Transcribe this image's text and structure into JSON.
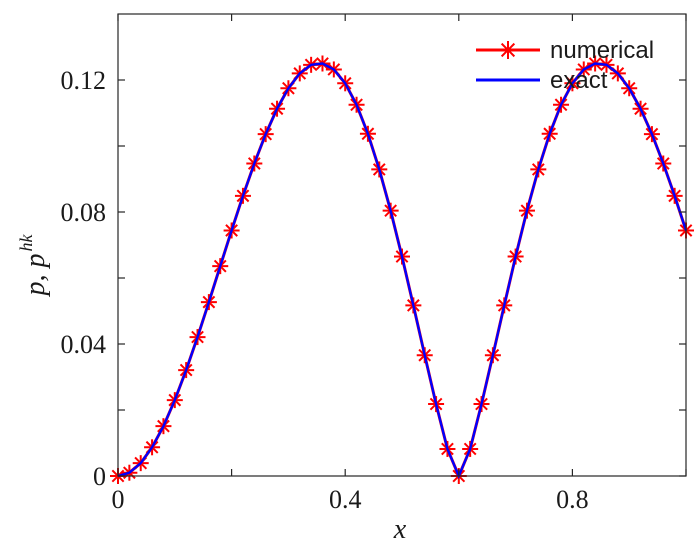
{
  "chart_data": {
    "type": "line",
    "xlabel": "x",
    "ylabel": {
      "main": "p, p",
      "sup": "hk"
    },
    "xlim": [
      0,
      1
    ],
    "ylim": [
      0,
      0.14
    ],
    "xticks": [
      0,
      0.2,
      0.4,
      0.6,
      0.8,
      1.0
    ],
    "xtick_labels": [
      "0",
      "",
      "0.4",
      "",
      "0.8",
      ""
    ],
    "yticks": [
      0,
      0.02,
      0.04,
      0.06,
      0.08,
      0.1,
      0.12
    ],
    "ytick_labels": [
      "0",
      "",
      "0.04",
      "",
      "0.08",
      "",
      "0.12"
    ],
    "grid": false,
    "legend_position": "top-right",
    "x": [
      0,
      0.02,
      0.04,
      0.06,
      0.08,
      0.1,
      0.12,
      0.14,
      0.16,
      0.18,
      0.2,
      0.22,
      0.24,
      0.26,
      0.28,
      0.3,
      0.32,
      0.34,
      0.36,
      0.38,
      0.4,
      0.42,
      0.44,
      0.46,
      0.48,
      0.5,
      0.52,
      0.54,
      0.56,
      0.58,
      0.6,
      0.62,
      0.64,
      0.66,
      0.68,
      0.7,
      0.72,
      0.74,
      0.76,
      0.78,
      0.8,
      0.82,
      0.84,
      0.86,
      0.88,
      0.9,
      0.92,
      0.94,
      0.96,
      0.98,
      1.0
    ],
    "series": [
      {
        "name": "numerical",
        "color": "#ff0000",
        "marker": "asterisk",
        "values": [
          0.0,
          0.001,
          0.0039,
          0.0087,
          0.0151,
          0.023,
          0.0321,
          0.0421,
          0.0527,
          0.0636,
          0.0744,
          0.0849,
          0.0947,
          0.1036,
          0.1113,
          0.1175,
          0.122,
          0.1246,
          0.125,
          0.1232,
          0.119,
          0.1125,
          0.1037,
          0.0929,
          0.0804,
          0.0665,
          0.0517,
          0.0366,
          0.0218,
          0.0082,
          0.0,
          0.0082,
          0.0218,
          0.0366,
          0.0517,
          0.0665,
          0.0804,
          0.0929,
          0.1037,
          0.1125,
          0.119,
          0.1232,
          0.125,
          0.1246,
          0.122,
          0.1175,
          0.1113,
          0.1036,
          0.0947,
          0.0849,
          0.0744
        ]
      },
      {
        "name": "exact",
        "color": "#0000ff",
        "marker": "none",
        "values": [
          0.0,
          0.001,
          0.0039,
          0.0087,
          0.0151,
          0.023,
          0.0321,
          0.0421,
          0.0527,
          0.0636,
          0.0744,
          0.0849,
          0.0947,
          0.1036,
          0.1113,
          0.1175,
          0.122,
          0.1246,
          0.125,
          0.1232,
          0.119,
          0.1125,
          0.1037,
          0.0929,
          0.0804,
          0.0665,
          0.0517,
          0.0366,
          0.0218,
          0.0082,
          0.0,
          0.0082,
          0.0218,
          0.0366,
          0.0517,
          0.0665,
          0.0804,
          0.0929,
          0.1037,
          0.1125,
          0.119,
          0.1232,
          0.125,
          0.1246,
          0.122,
          0.1175,
          0.1113,
          0.1036,
          0.0947,
          0.0849,
          0.0744
        ]
      }
    ]
  }
}
